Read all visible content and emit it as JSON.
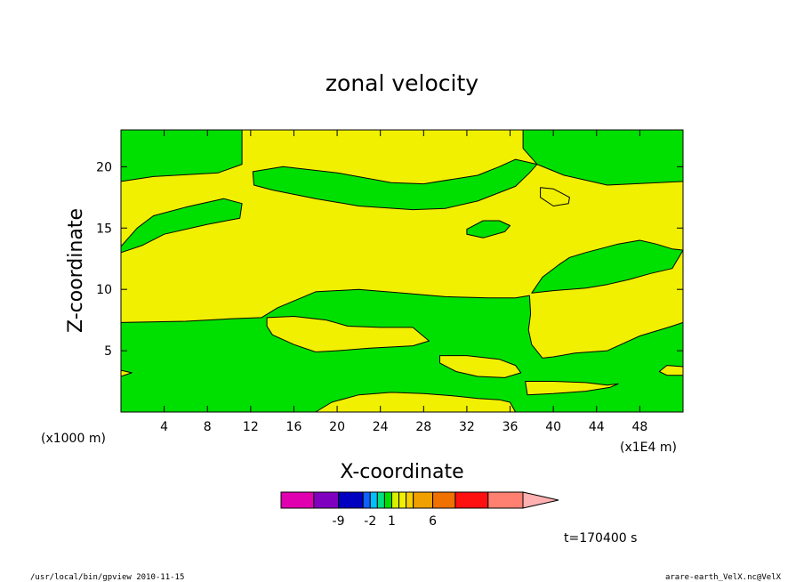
{
  "chart_data": {
    "type": "heatmap",
    "subtype": "filled contour",
    "title": "zonal velocity",
    "xlabel": "X-coordinate",
    "ylabel": "Z-coordinate",
    "x_unit_note": "(x1E4 m)",
    "y_unit_note": "(x1000 m)",
    "xlim": [
      0,
      52
    ],
    "ylim": [
      0,
      23
    ],
    "x_ticks": [
      4,
      8,
      12,
      16,
      20,
      24,
      28,
      32,
      36,
      40,
      44,
      48
    ],
    "y_ticks": [
      5,
      10,
      15,
      20
    ],
    "colors": {
      "green": "#00e000",
      "yellow": "#f0f000"
    },
    "regions": [
      {
        "color": "green",
        "name": "region-upper-left",
        "points": [
          [
            0,
            23
          ],
          [
            11.2,
            23
          ],
          [
            11.2,
            20.2
          ],
          [
            9,
            19.5
          ],
          [
            3,
            19.2
          ],
          [
            0,
            18.8
          ]
        ]
      },
      {
        "color": "green",
        "name": "region-upper-right",
        "points": [
          [
            37.2,
            23
          ],
          [
            52,
            23
          ],
          [
            52,
            18.8
          ],
          [
            45,
            18.5
          ],
          [
            41,
            19.3
          ],
          [
            38.5,
            20.2
          ],
          [
            37.2,
            21.5
          ]
        ]
      },
      {
        "color": "green",
        "name": "region-left-band",
        "points": [
          [
            0,
            13.5
          ],
          [
            1.5,
            15
          ],
          [
            3,
            16
          ],
          [
            6,
            16.7
          ],
          [
            9.5,
            17.4
          ],
          [
            11.2,
            17
          ],
          [
            11,
            15.8
          ],
          [
            8,
            15.3
          ],
          [
            4,
            14.5
          ],
          [
            2,
            13.6
          ],
          [
            0,
            13
          ]
        ]
      },
      {
        "color": "green",
        "name": "region-upper-mid-band",
        "points": [
          [
            12.2,
            19.6
          ],
          [
            15,
            20
          ],
          [
            20,
            19.5
          ],
          [
            25,
            18.7
          ],
          [
            28,
            18.6
          ],
          [
            33,
            19.3
          ],
          [
            35,
            20
          ],
          [
            36.5,
            20.6
          ],
          [
            38.5,
            20.2
          ],
          [
            37.8,
            19.5
          ],
          [
            36.5,
            18.4
          ],
          [
            33,
            17.2
          ],
          [
            30,
            16.6
          ],
          [
            27,
            16.5
          ],
          [
            22,
            16.8
          ],
          [
            18,
            17.4
          ],
          [
            14,
            18.1
          ],
          [
            12.3,
            18.5
          ]
        ]
      },
      {
        "color": "green",
        "name": "region-right-band",
        "points": [
          [
            52,
            13.2
          ],
          [
            51,
            11.7
          ],
          [
            49,
            11.3
          ],
          [
            47,
            10.8
          ],
          [
            45,
            10.4
          ],
          [
            43,
            10.1
          ],
          [
            40,
            9.9
          ],
          [
            38,
            9.7
          ],
          [
            39,
            11
          ],
          [
            40.5,
            12
          ],
          [
            41.5,
            12.6
          ],
          [
            43,
            13
          ],
          [
            46,
            13.7
          ],
          [
            48,
            14
          ],
          [
            49.5,
            13.7
          ],
          [
            51,
            13.3
          ]
        ]
      },
      {
        "color": "green",
        "name": "region-lower-main",
        "points": [
          [
            0,
            7.3
          ],
          [
            6,
            7.4
          ],
          [
            10,
            7.6
          ],
          [
            13,
            7.7
          ],
          [
            14.5,
            8.5
          ],
          [
            18,
            9.8
          ],
          [
            22,
            10
          ],
          [
            26,
            9.7
          ],
          [
            30,
            9.4
          ],
          [
            34,
            9.3
          ],
          [
            36.5,
            9.3
          ],
          [
            37.8,
            9.5
          ],
          [
            37.9,
            8
          ],
          [
            37.7,
            6.7
          ],
          [
            38,
            5.5
          ],
          [
            39,
            4.4
          ],
          [
            40,
            4.5
          ],
          [
            42,
            4.8
          ],
          [
            45,
            5
          ],
          [
            48,
            6.2
          ],
          [
            51,
            7
          ],
          [
            52,
            7.3
          ],
          [
            52,
            0
          ],
          [
            0,
            0
          ]
        ]
      },
      {
        "color": "yellow",
        "name": "region-lower-island",
        "points": [
          [
            13.5,
            7.7
          ],
          [
            16,
            7.8
          ],
          [
            19,
            7.5
          ],
          [
            21,
            7
          ],
          [
            24,
            6.9
          ],
          [
            27,
            6.9
          ],
          [
            28.5,
            5.8
          ],
          [
            27,
            5.4
          ],
          [
            23,
            5.2
          ],
          [
            20,
            5
          ],
          [
            18,
            4.9
          ],
          [
            16,
            5.5
          ],
          [
            14,
            6.3
          ],
          [
            13.5,
            7
          ]
        ]
      },
      {
        "color": "yellow",
        "name": "region-bottom-island",
        "points": [
          [
            18,
            0
          ],
          [
            19.5,
            0.8
          ],
          [
            22,
            1.4
          ],
          [
            25,
            1.6
          ],
          [
            28,
            1.5
          ],
          [
            31,
            1.3
          ],
          [
            33,
            1.1
          ],
          [
            35,
            1
          ],
          [
            36,
            0.8
          ],
          [
            36.5,
            0
          ]
        ]
      },
      {
        "color": "yellow",
        "name": "region-bottom-right-island",
        "points": [
          [
            29.5,
            4.6
          ],
          [
            32,
            4.6
          ],
          [
            35,
            4.3
          ],
          [
            36.5,
            3.8
          ],
          [
            37,
            3.2
          ],
          [
            35.5,
            2.8
          ],
          [
            33,
            2.9
          ],
          [
            31,
            3.3
          ],
          [
            29.5,
            4
          ]
        ]
      },
      {
        "color": "yellow",
        "name": "region-right-bottom-strip",
        "points": [
          [
            37.4,
            2.5
          ],
          [
            40,
            2.5
          ],
          [
            43,
            2.4
          ],
          [
            45,
            2.2
          ],
          [
            46,
            2.3
          ],
          [
            45.2,
            2
          ],
          [
            43,
            1.7
          ],
          [
            40,
            1.5
          ],
          [
            37.6,
            1.4
          ]
        ]
      },
      {
        "color": "yellow",
        "name": "region-left-edge-blob",
        "points": [
          [
            0,
            3.4
          ],
          [
            1,
            3.2
          ],
          [
            0,
            2.9
          ]
        ]
      },
      {
        "color": "yellow",
        "name": "region-right-edge-blob",
        "points": [
          [
            52,
            3.7
          ],
          [
            50.5,
            3.8
          ],
          [
            49.8,
            3.3
          ],
          [
            50.5,
            3
          ],
          [
            52,
            3
          ]
        ]
      },
      {
        "color": "yellow",
        "name": "region-small-upper-right",
        "points": [
          [
            38.8,
            18.3
          ],
          [
            40,
            18.2
          ],
          [
            41.5,
            17.5
          ],
          [
            41.4,
            17
          ],
          [
            40,
            16.8
          ],
          [
            38.8,
            17.5
          ]
        ]
      },
      {
        "color": "green",
        "name": "region-small-upper-center",
        "points": [
          [
            32,
            14.9
          ],
          [
            33.5,
            15.6
          ],
          [
            35,
            15.6
          ],
          [
            36,
            15.2
          ],
          [
            35.5,
            14.7
          ],
          [
            33.5,
            14.2
          ],
          [
            32,
            14.5
          ]
        ]
      }
    ],
    "colorbar": {
      "tick_labels": [
        "-9",
        "-2",
        "1",
        "6"
      ],
      "segments": [
        "#e000b0",
        "#8000c0",
        "#0000c0",
        "#1060ff",
        "#00c0ff",
        "#00e080",
        "#00e000",
        "#d8f000",
        "#f0f000",
        "#f8d000",
        "#f0a000",
        "#f07000",
        "#ff1010",
        "#ff8070"
      ],
      "extension_color": "#ffb0b0"
    },
    "time_label": "t=170400 s"
  },
  "footer": {
    "left": "/usr/local/bin/gpview   2010-11-15",
    "right": "arare-earth_VelX.nc@VelX"
  }
}
